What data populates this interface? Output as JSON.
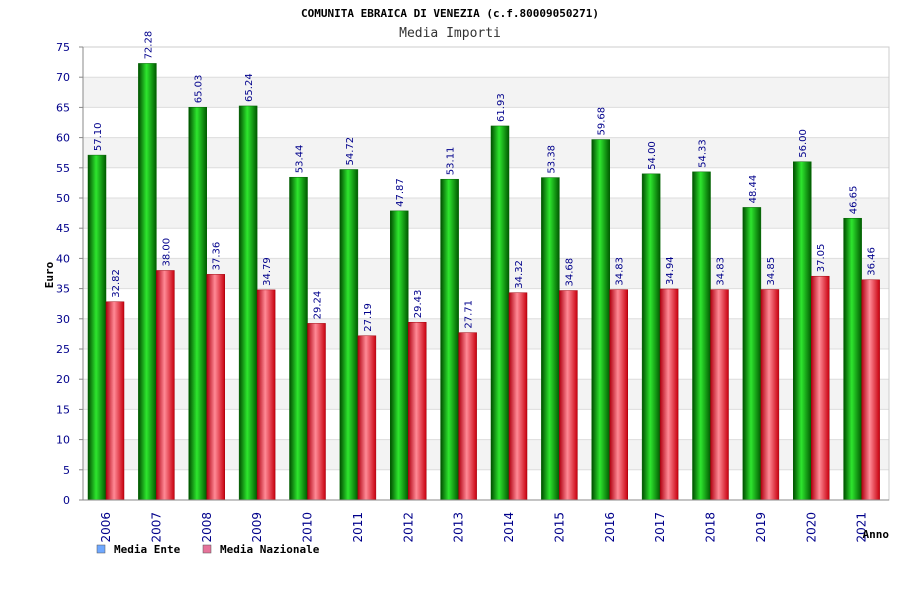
{
  "chart_data": {
    "type": "bar",
    "title": "COMUNITA EBRAICA DI VENEZIA (c.f.80009050271)",
    "subtitle": "Media Importi",
    "xlabel": "Anno",
    "ylabel": "Euro",
    "ylim": [
      0,
      75
    ],
    "yticks": [
      0,
      5,
      10,
      15,
      20,
      25,
      30,
      35,
      40,
      45,
      50,
      55,
      60,
      65,
      70,
      75
    ],
    "categories": [
      "2006",
      "2007",
      "2008",
      "2009",
      "2010",
      "2011",
      "2012",
      "2013",
      "2014",
      "2015",
      "2016",
      "2017",
      "2018",
      "2019",
      "2020",
      "2021"
    ],
    "series": [
      {
        "name": "Media Ente",
        "color": "#00b400",
        "legend_color": "#6fa8ff",
        "values": [
          57.1,
          72.28,
          65.03,
          65.24,
          53.44,
          54.72,
          47.87,
          53.11,
          61.93,
          53.38,
          59.68,
          54.0,
          54.33,
          48.44,
          56.0,
          46.65
        ],
        "labels": [
          "57.10",
          "72.28",
          "65.03",
          "65.24",
          "53.44",
          "54.72",
          "47.87",
          "53.11",
          "61.93",
          "53.38",
          "59.68",
          "54.00",
          "54.33",
          "48.44",
          "56.00",
          "46.65"
        ]
      },
      {
        "name": "Media Nazionale",
        "color": "#e8101e",
        "legend_color": "#e6739a",
        "values": [
          32.82,
          38.0,
          37.36,
          34.79,
          29.24,
          27.19,
          29.43,
          27.71,
          34.32,
          34.68,
          34.83,
          34.94,
          34.83,
          34.85,
          37.05,
          36.46
        ],
        "labels": [
          "32.82",
          "38.00",
          "37.36",
          "34.79",
          "29.24",
          "27.19",
          "29.43",
          "27.71",
          "34.32",
          "34.68",
          "34.83",
          "34.94",
          "34.83",
          "34.85",
          "37.05",
          "36.46"
        ]
      }
    ],
    "grid": true,
    "legend_position": "bottom-left"
  }
}
